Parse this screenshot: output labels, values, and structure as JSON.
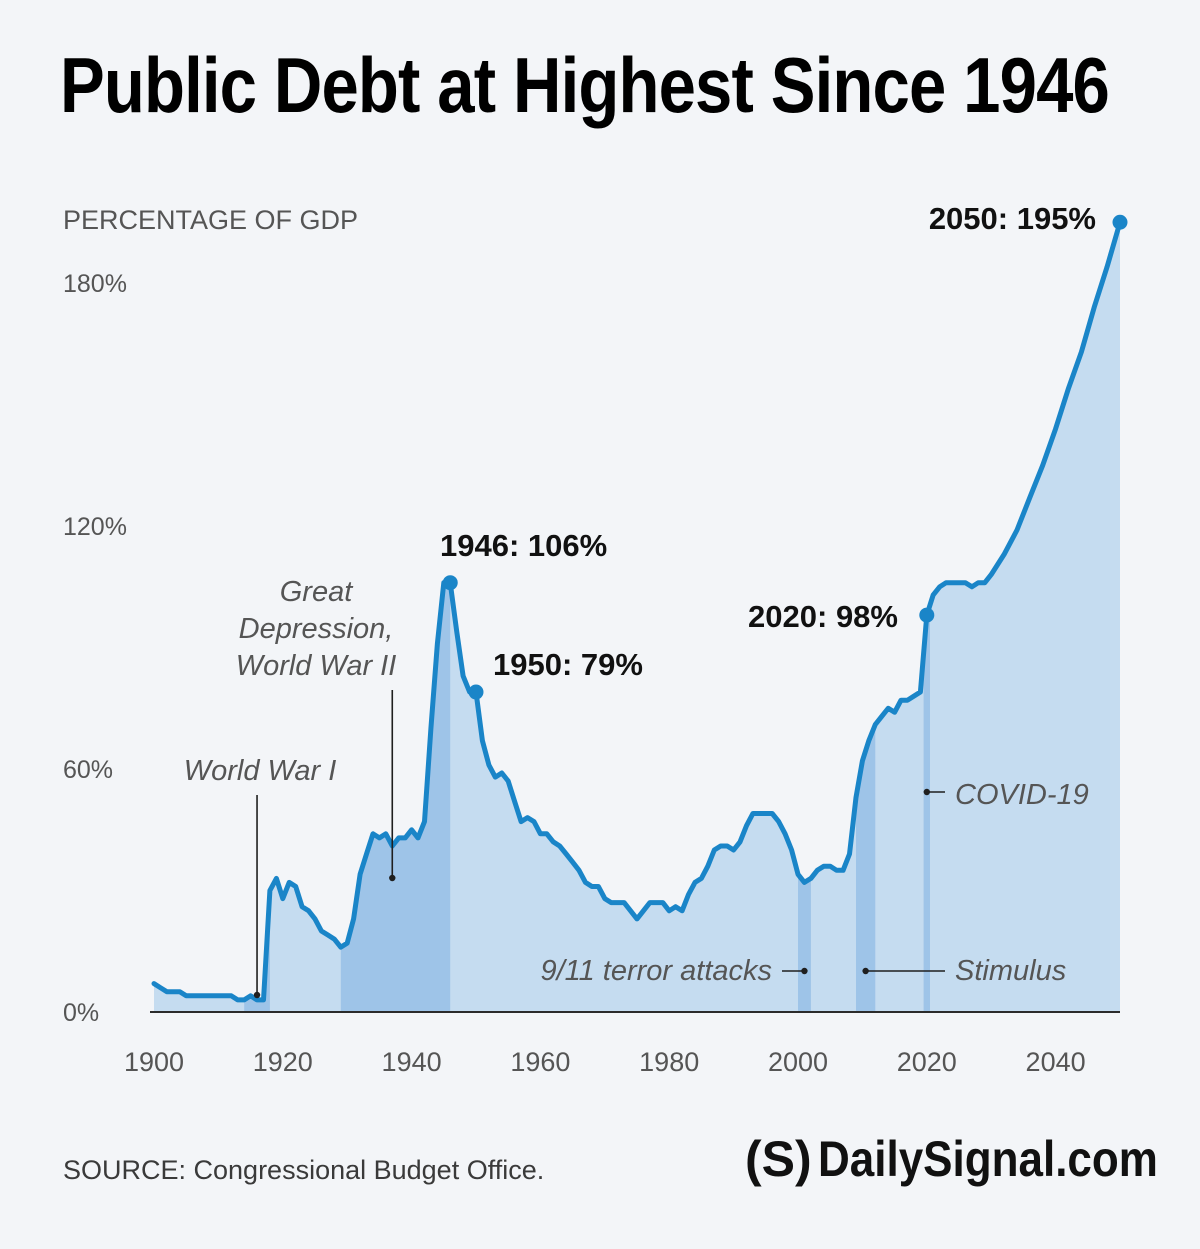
{
  "title": "Public Debt at Highest Since 1946",
  "source": "SOURCE: Congressional Budget Office.",
  "logo": {
    "mark": "(S)",
    "text": "DailySignal.com"
  },
  "colors": {
    "line": "#1a85c8",
    "area": "#c5dcf0",
    "shade": "#9ec4e8",
    "background": "#f3f5f8",
    "axis_text": "#555555",
    "label_text": "#111111",
    "annotation_text": "#555555"
  },
  "chart_data": {
    "type": "area",
    "ylabel": "PERCENTAGE OF GDP",
    "xlim": [
      1900,
      2050
    ],
    "ylim": [
      0,
      195
    ],
    "x_ticks": [
      1900,
      1920,
      1940,
      1960,
      1980,
      2000,
      2020,
      2040
    ],
    "y_ticks": [
      {
        "value": 0,
        "label": "0%"
      },
      {
        "value": 60,
        "label": "60%"
      },
      {
        "value": 120,
        "label": "120%"
      },
      {
        "value": 180,
        "label": "180%"
      }
    ],
    "grid": false,
    "series": [
      {
        "x": [
          1900,
          1901,
          1902,
          1903,
          1904,
          1905,
          1906,
          1907,
          1908,
          1909,
          1910,
          1911,
          1912,
          1913,
          1914,
          1915,
          1916,
          1917,
          1918,
          1919,
          1920,
          1921,
          1922,
          1923,
          1924,
          1925,
          1926,
          1927,
          1928,
          1929,
          1930,
          1931,
          1932,
          1933,
          1934,
          1935,
          1936,
          1937,
          1938,
          1939,
          1940,
          1941,
          1942,
          1943,
          1944,
          1945,
          1946,
          1947,
          1948,
          1949,
          1950,
          1951,
          1952,
          1953,
          1954,
          1955,
          1956,
          1957,
          1958,
          1959,
          1960,
          1961,
          1962,
          1963,
          1964,
          1965,
          1966,
          1967,
          1968,
          1969,
          1970,
          1971,
          1972,
          1973,
          1974,
          1975,
          1976,
          1977,
          1978,
          1979,
          1980,
          1981,
          1982,
          1983,
          1984,
          1985,
          1986,
          1987,
          1988,
          1989,
          1990,
          1991,
          1992,
          1993,
          1994,
          1995,
          1996,
          1997,
          1998,
          1999,
          2000,
          2001,
          2002,
          2003,
          2004,
          2005,
          2006,
          2007,
          2008,
          2009,
          2010,
          2011,
          2012,
          2013,
          2014,
          2015,
          2016,
          2017,
          2018,
          2019,
          2020,
          2021,
          2022,
          2023,
          2024,
          2025,
          2026,
          2027,
          2028,
          2029,
          2030,
          2032,
          2034,
          2036,
          2038,
          2040,
          2042,
          2044,
          2046,
          2048,
          2050
        ],
        "y": [
          7,
          6,
          5,
          5,
          5,
          4,
          4,
          4,
          4,
          4,
          4,
          4,
          4,
          3,
          3,
          4,
          3,
          3,
          30,
          33,
          28,
          32,
          31,
          26,
          25,
          23,
          20,
          19,
          18,
          16,
          17,
          23,
          34,
          39,
          44,
          43,
          44,
          41,
          43,
          43,
          45,
          43,
          47,
          70,
          91,
          106,
          106,
          94,
          83,
          79,
          79,
          67,
          61,
          58,
          59,
          57,
          52,
          47,
          48,
          47,
          44,
          44,
          42,
          41,
          39,
          37,
          35,
          32,
          31,
          31,
          28,
          27,
          27,
          27,
          25,
          23,
          25,
          27,
          27,
          27,
          25,
          26,
          25,
          29,
          32,
          33,
          36,
          40,
          41,
          41,
          40,
          42,
          46,
          49,
          49,
          49,
          49,
          47,
          44,
          40,
          34,
          32,
          33,
          35,
          36,
          36,
          35,
          35,
          39,
          53,
          62,
          67,
          71,
          73,
          75,
          74,
          77,
          77,
          78,
          79,
          98,
          103,
          105,
          106,
          106,
          106,
          106,
          105,
          106,
          106,
          108,
          113,
          119,
          127,
          135,
          144,
          154,
          163,
          174,
          184,
          195
        ]
      }
    ],
    "annotations": [
      {
        "label": "1946: 106%",
        "x": 1946,
        "y": 106
      },
      {
        "label": "1950: 79%",
        "x": 1950,
        "y": 79
      },
      {
        "label": "2020: 98%",
        "x": 2020,
        "y": 98
      },
      {
        "label": "2050: 195%",
        "x": 2050,
        "y": 195
      }
    ],
    "shaded_periods": [
      {
        "label": "World War I",
        "start": 1914,
        "end": 1918
      },
      {
        "label": "Great Depression, World War II",
        "start": 1929,
        "end": 1946
      },
      {
        "label": "9/11 terror attacks",
        "start": 2000,
        "end": 2002
      },
      {
        "label": "Stimulus",
        "start": 2009,
        "end": 2012
      },
      {
        "label": "COVID-19",
        "start": 2019.5,
        "end": 2020.5
      }
    ]
  }
}
